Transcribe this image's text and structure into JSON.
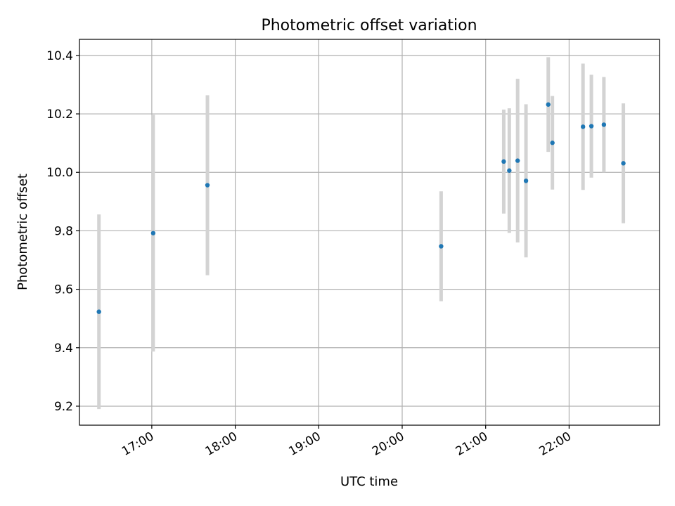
{
  "chart_data": {
    "type": "scatter",
    "title": "Photometric offset variation",
    "xlabel": "UTC time",
    "ylabel": "Photometric offset",
    "xlim": [
      "16:08",
      "23:05"
    ],
    "ylim": [
      9.135,
      10.455
    ],
    "x_ticks": [
      "17:00",
      "18:00",
      "19:00",
      "20:00",
      "21:00",
      "22:00"
    ],
    "y_ticks": [
      "9.2",
      "9.4",
      "9.6",
      "9.8",
      "10.0",
      "10.2",
      "10.4"
    ],
    "y_tick_values": [
      9.2,
      9.4,
      9.6,
      9.8,
      10.0,
      10.2,
      10.4
    ],
    "grid": true,
    "marker_color": "#1f77b4",
    "errorbar_color": "#d3d3d3",
    "series": [
      {
        "x": [
          "16:22",
          "17:01",
          "17:40",
          "20:28",
          "21:13",
          "21:17",
          "21:23",
          "21:29",
          "21:45",
          "21:48",
          "22:10",
          "22:16",
          "22:25",
          "22:39"
        ],
        "y": [
          9.523,
          9.792,
          9.956,
          9.747,
          10.037,
          10.006,
          10.04,
          9.971,
          10.232,
          10.101,
          10.156,
          10.158,
          10.163,
          10.031
        ],
        "yerr": [
          0.333,
          0.405,
          0.308,
          0.188,
          0.178,
          0.213,
          0.28,
          0.262,
          0.162,
          0.16,
          0.216,
          0.176,
          0.163,
          0.205
        ]
      }
    ]
  }
}
